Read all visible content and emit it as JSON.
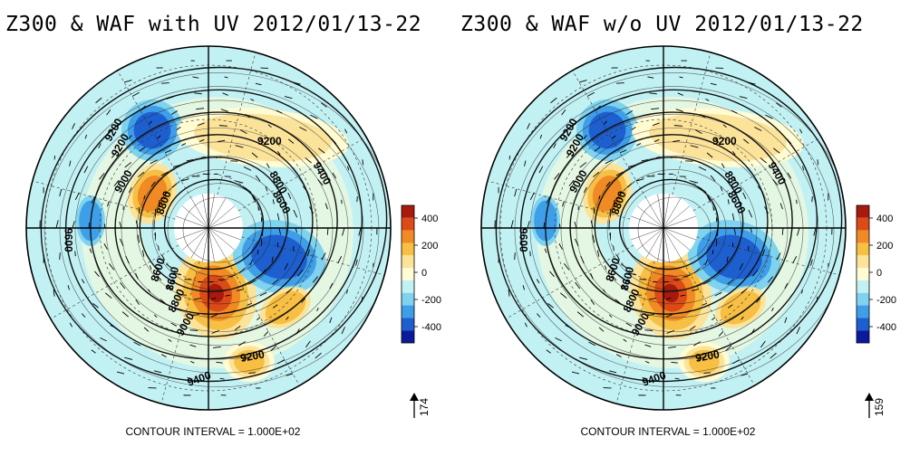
{
  "panels": [
    {
      "title": "Z300 & WAF with UV 2012/01/13-22",
      "footer": "CONTOUR INTERVAL = 1.000E+02",
      "vector_ref": "174",
      "contour_labels": [
        "9200",
        "9200",
        "9000",
        "8800",
        "8600",
        "9200",
        "8800",
        "8600",
        "9400",
        "9600",
        "8600",
        "8800",
        "9000",
        "9200",
        "9400"
      ]
    },
    {
      "title": "Z300 & WAF w/o UV 2012/01/13-22",
      "footer": "CONTOUR INTERVAL = 1.000E+02",
      "vector_ref": "159",
      "contour_labels": [
        "9200",
        "9200",
        "9000",
        "8800",
        "8600",
        "9200",
        "8800",
        "8600",
        "9400",
        "9600",
        "8600",
        "8800",
        "9000",
        "9200",
        "9400"
      ]
    }
  ],
  "chart_data": [
    {
      "type": "heatmap",
      "title": "Z300 & WAF with UV 2012/01/13-22",
      "projection": "north-polar-stereographic",
      "colorbar_ticks": [
        400,
        200,
        0,
        -200,
        -400
      ],
      "colorbar_colors": [
        "#0b1a9c",
        "#1e5fd0",
        "#3f9ee8",
        "#7fd3ee",
        "#c2f1f4",
        "#fffbd3",
        "#fbe39a",
        "#f7bf43",
        "#ef8a24",
        "#dc4a17",
        "#a8190e"
      ],
      "contour_interval": "1.000E+02",
      "contour_levels": [
        8600,
        8800,
        9000,
        9200,
        9400,
        9600
      ],
      "vector_reference": 174
    },
    {
      "type": "heatmap",
      "title": "Z300 & WAF w/o UV 2012/01/13-22",
      "projection": "north-polar-stereographic",
      "colorbar_ticks": [
        400,
        200,
        0,
        -200,
        -400
      ],
      "colorbar_colors": [
        "#0b1a9c",
        "#1e5fd0",
        "#3f9ee8",
        "#7fd3ee",
        "#c2f1f4",
        "#fffbd3",
        "#fbe39a",
        "#f7bf43",
        "#ef8a24",
        "#dc4a17",
        "#a8190e"
      ],
      "contour_interval": "1.000E+02",
      "contour_levels": [
        8600,
        8800,
        9000,
        9200,
        9400,
        9600
      ],
      "vector_reference": 159
    }
  ]
}
